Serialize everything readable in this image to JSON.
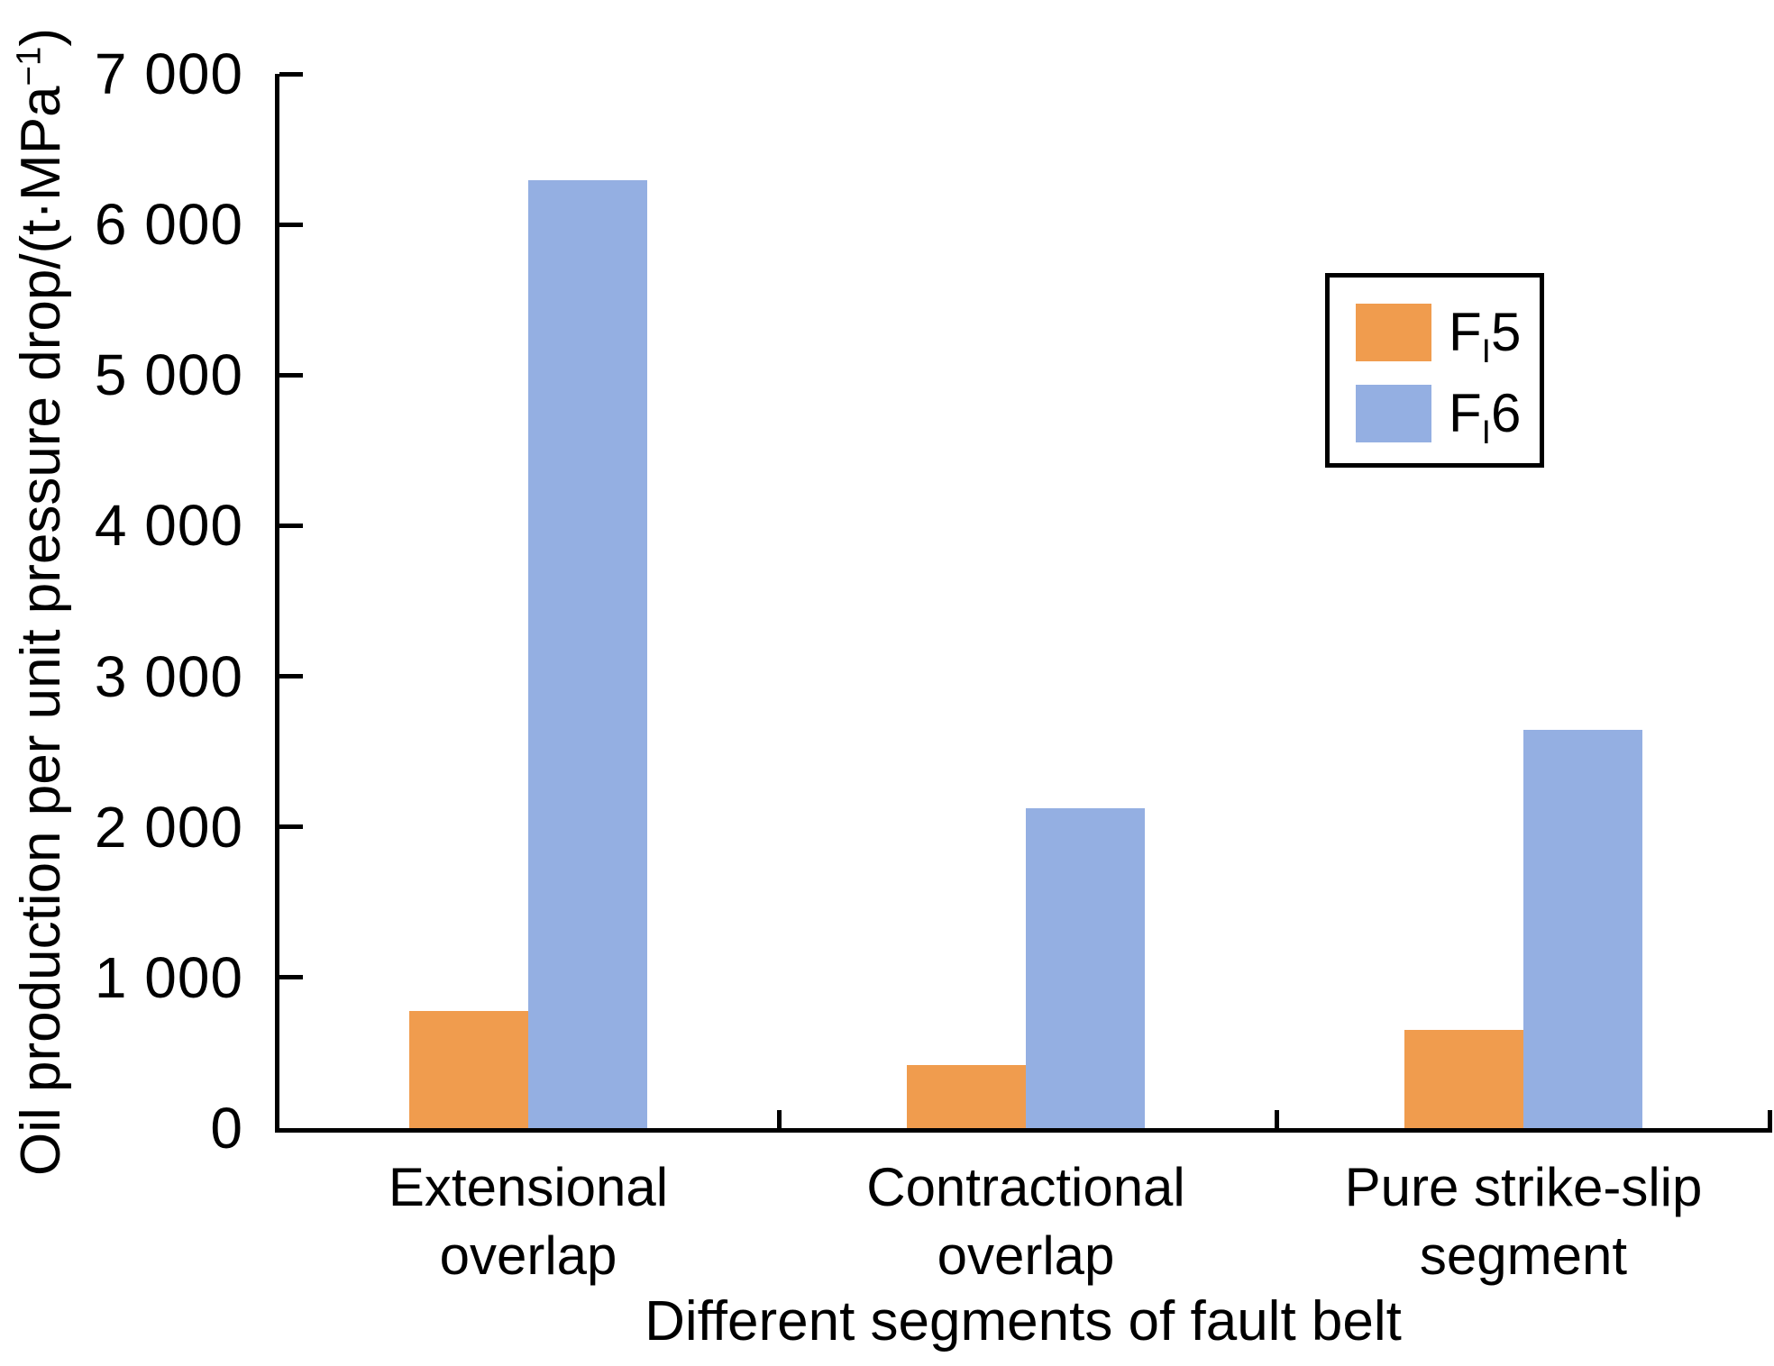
{
  "chart_data": {
    "type": "bar",
    "title": "",
    "xlabel": "Different segments of fault belt",
    "ylabel": "Oil production per unit pressure drop/(t·MPa⁻¹)",
    "ylabel_parts": {
      "pre": "Oil production per unit pressure drop/(t·MPa",
      "sup": "−1",
      "post": ")"
    },
    "categories": [
      "Extensional overlap",
      "Contractional overlap",
      "Pure strike-slip segment"
    ],
    "category_label_lines": [
      [
        "Extensional",
        "overlap"
      ],
      [
        "Contractional",
        "overlap"
      ],
      [
        "Pure strike-slip",
        "segment"
      ]
    ],
    "series": [
      {
        "name": "FI5",
        "label_parts": {
          "pre": "F",
          "sub": "I",
          "post": "5"
        },
        "color": "#F09C4E",
        "values": [
          775,
          420,
          655
        ]
      },
      {
        "name": "FI6",
        "label_parts": {
          "pre": "F",
          "sub": "I",
          "post": "6"
        },
        "color": "#94AFE2",
        "values": [
          6295,
          2125,
          2645
        ]
      }
    ],
    "ylim": [
      0,
      7000
    ],
    "ytick_step": 1000,
    "ytick_labels": [
      "0",
      "1 000",
      "2 000",
      "3 000",
      "4 000",
      "5 000",
      "6 000",
      "7 000"
    ],
    "grid": "off",
    "legend_position": "upper-center-right boxed"
  }
}
